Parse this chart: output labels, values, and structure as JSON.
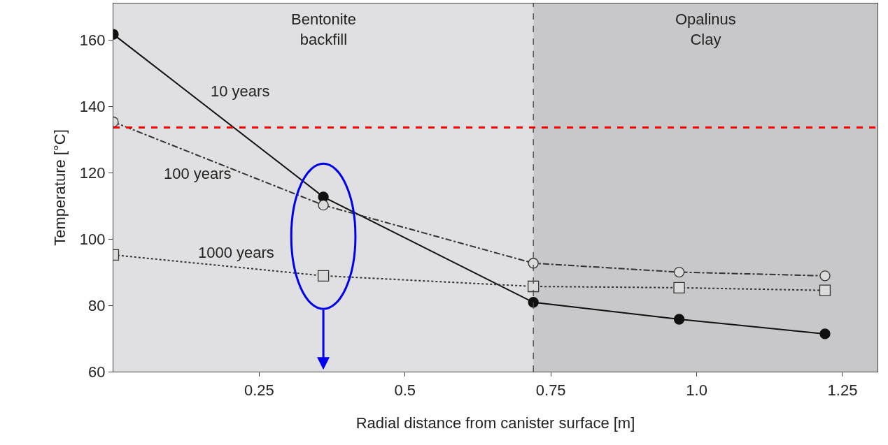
{
  "chart_data": {
    "type": "line",
    "xlabel": "Radial distance from canister surface [m]",
    "ylabel": "Temperature [°C]",
    "x": [
      0,
      0.36,
      0.72,
      0.97,
      1.22
    ],
    "series": [
      {
        "name": "10 years",
        "color": "#111111",
        "values": [
          161.7,
          112.7,
          80.9,
          75.8,
          71.4
        ],
        "marker": "circle",
        "line_style": "solid"
      },
      {
        "name": "100 years",
        "color": "#333333",
        "values": [
          135.3,
          110.2,
          92.7,
          90.0,
          88.9
        ],
        "marker": "circle",
        "line_style": "dashdot"
      },
      {
        "name": "1000 years",
        "color": "#333333",
        "values": [
          95.2,
          88.9,
          85.7,
          85.3,
          84.5
        ],
        "marker": "square",
        "line_style": "dotted"
      }
    ],
    "xlim": [
      0,
      1.31
    ],
    "ylim": [
      60,
      171
    ],
    "xticks": [
      0.25,
      0.5,
      0.75,
      {
        "value": 1.0,
        "label": "1.0"
      },
      1.25
    ],
    "yticks": [
      60,
      80,
      100,
      120,
      140,
      160
    ],
    "bands": [
      {
        "axis": "x",
        "from": 0,
        "to": 0.72,
        "label": "Bentonite\nbackfill",
        "color": "#e0e0e2"
      },
      {
        "axis": "x",
        "from": 0.72,
        "to": 1.31,
        "label": "Opalinus\nClay",
        "color": "#c8c8ca"
      }
    ],
    "ref_lines": [
      {
        "axis": "x",
        "value": 0.72,
        "color": "#444444",
        "line_style": "dashed"
      },
      {
        "axis": "y",
        "value": 133.6,
        "color": "#ff0000",
        "line_style": "dashed"
      }
    ],
    "legend": false,
    "grid": false
  }
}
